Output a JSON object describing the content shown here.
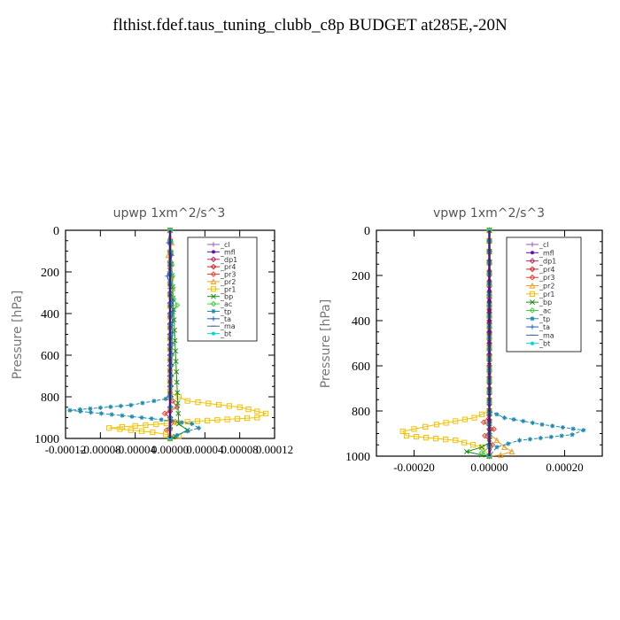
{
  "page": {
    "title": "flthist.fdef.taus_tuning_clubb_c8p  BUDGET at285E,-20N"
  },
  "chart_data": [
    {
      "type": "line",
      "title": "upwp   1xm^2/s^3",
      "ylabel": "Pressure [hPa]",
      "xlim": [
        -0.00012,
        0.00012
      ],
      "ylim": [
        1000,
        0
      ],
      "xticks": [
        -0.00012,
        -8e-05,
        -4e-05,
        0.0,
        4e-05,
        8e-05,
        0.00012
      ],
      "xtick_labels": [
        "-0.00012",
        "-0.00008",
        "-0.00004",
        "0.00000",
        "0.00004",
        "0.00008",
        "0.00012"
      ],
      "yticks": [
        0,
        200,
        400,
        600,
        800,
        1000
      ],
      "ytick_labels": [
        "0",
        "200",
        "400",
        "600",
        "800",
        "1000"
      ],
      "legend_position": "top-right",
      "series": [
        {
          "name": "_cl",
          "color": "#9b59b6",
          "marker": "plus",
          "x": [
            0,
            0,
            0,
            0
          ],
          "y": [
            0,
            400,
            800,
            1000
          ]
        },
        {
          "name": "_mfl",
          "color": "#6a0dad",
          "marker": "dot",
          "x": [
            0,
            0,
            0,
            0
          ],
          "y": [
            0,
            400,
            800,
            1000
          ]
        },
        {
          "name": "_dp1",
          "color": "#b03060",
          "marker": "diamond",
          "x": [
            0,
            0,
            0,
            0,
            0
          ],
          "y": [
            0,
            300,
            600,
            850,
            1000
          ]
        },
        {
          "name": "_pr4",
          "color": "#cc2222",
          "marker": "diamond",
          "x": [
            0,
            0,
            0,
            0,
            0
          ],
          "y": [
            0,
            500,
            800,
            870,
            1000
          ]
        },
        {
          "name": "_pr3",
          "color": "#e8402a",
          "marker": "diamond",
          "x": [
            0,
            0,
            3e-06,
            8e-06,
            -6e-06,
            6e-06,
            -4e-06,
            0
          ],
          "y": [
            0,
            780,
            820,
            850,
            880,
            920,
            960,
            1000
          ]
        },
        {
          "name": "_pr2",
          "color": "#f0a020",
          "marker": "triangle",
          "x": [
            0,
            2e-06,
            -2e-06,
            3e-06,
            0,
            0
          ],
          "y": [
            0,
            60,
            120,
            280,
            360,
            1000
          ]
        },
        {
          "name": "_pr1",
          "color": "#f2c100",
          "marker": "square",
          "x": [
            0,
            0,
            2e-05,
            8e-05,
            0.00011,
            0.0001,
            2e-05,
            -4e-05,
            -7e-05,
            -2e-05,
            1e-05,
            0
          ],
          "y": [
            0,
            780,
            820,
            850,
            880,
            900,
            920,
            940,
            950,
            970,
            990,
            1000
          ]
        },
        {
          "name": "_bp",
          "color": "#1a8c1a",
          "marker": "x",
          "x": [
            0,
            4e-06,
            1e-05,
            2e-05,
            6e-06,
            0
          ],
          "y": [
            0,
            380,
            930,
            960,
            990,
            1000
          ]
        },
        {
          "name": "_ac",
          "color": "#44cc44",
          "marker": "diamond",
          "x": [
            0,
            4e-06,
            8e-06,
            3e-06,
            0
          ],
          "y": [
            0,
            330,
            360,
            400,
            1000
          ]
        },
        {
          "name": "_tp",
          "color": "#1e8ab0",
          "marker": "star",
          "x": [
            0,
            0,
            -5e-06,
            -4.5e-05,
            -0.000115,
            -5.5e-05,
            -1e-05,
            2.5e-05,
            3.3e-05,
            2e-05,
            8e-06,
            0
          ],
          "y": [
            0,
            780,
            810,
            840,
            865,
            890,
            910,
            930,
            950,
            965,
            985,
            1000
          ]
        },
        {
          "name": "_ta",
          "color": "#2060c0",
          "marker": "plus",
          "x": [
            0,
            -2e-06,
            2e-06,
            -3e-06,
            3e-06,
            0
          ],
          "y": [
            0,
            60,
            120,
            220,
            340,
            1000
          ]
        },
        {
          "name": "_ma",
          "color": "#5060a0",
          "marker": "dash",
          "x": [
            0,
            0
          ],
          "y": [
            0,
            1000
          ]
        },
        {
          "name": "_bt",
          "color": "#00d8d8",
          "marker": "dot",
          "x": [
            0,
            0
          ],
          "y": [
            0,
            1000
          ]
        }
      ]
    },
    {
      "type": "line",
      "title": "vpwp   1xm^2/s^3",
      "ylabel": "Pressure [hPa]",
      "xlim": [
        -0.0003,
        0.0003
      ],
      "ylim": [
        1000,
        0
      ],
      "xticks": [
        -0.0002,
        0.0,
        0.0002
      ],
      "xtick_labels": [
        "-0.00020",
        "0.00000",
        "0.00020"
      ],
      "yticks": [
        0,
        200,
        400,
        600,
        800,
        1000
      ],
      "ytick_labels": [
        "0",
        "200",
        "400",
        "600",
        "800",
        "1000"
      ],
      "legend_position": "top-right",
      "series": [
        {
          "name": "_cl",
          "color": "#9b59b6",
          "marker": "plus",
          "x": [
            0,
            0,
            0,
            0
          ],
          "y": [
            0,
            400,
            800,
            1000
          ]
        },
        {
          "name": "_mfl",
          "color": "#6a0dad",
          "marker": "dot",
          "x": [
            0,
            0,
            0,
            0
          ],
          "y": [
            0,
            400,
            800,
            1000
          ]
        },
        {
          "name": "_dp1",
          "color": "#b03060",
          "marker": "diamond",
          "x": [
            0,
            0,
            0,
            0,
            0
          ],
          "y": [
            0,
            300,
            600,
            850,
            1000
          ]
        },
        {
          "name": "_pr4",
          "color": "#cc2222",
          "marker": "diamond",
          "x": [
            0,
            0,
            0,
            0,
            0
          ],
          "y": [
            0,
            500,
            800,
            880,
            1000
          ]
        },
        {
          "name": "_pr3",
          "color": "#e8402a",
          "marker": "diamond",
          "x": [
            0,
            0,
            -1.5e-05,
            1.2e-05,
            -1.2e-05,
            8e-06,
            0
          ],
          "y": [
            0,
            820,
            850,
            880,
            910,
            950,
            1000
          ]
        },
        {
          "name": "_pr2",
          "color": "#f0a020",
          "marker": "triangle",
          "x": [
            0,
            0,
            2e-05,
            4e-05,
            6e-05,
            3e-05,
            0
          ],
          "y": [
            0,
            900,
            930,
            960,
            980,
            995,
            1000
          ]
        },
        {
          "name": "_pr1",
          "color": "#f2c100",
          "marker": "square",
          "x": [
            0,
            0,
            -4e-05,
            -0.00014,
            -0.00023,
            -0.00022,
            -9e-05,
            -2e-05,
            0
          ],
          "y": [
            0,
            800,
            830,
            860,
            890,
            910,
            930,
            960,
            1000
          ]
        },
        {
          "name": "_bp",
          "color": "#1a8c1a",
          "marker": "x",
          "x": [
            0,
            0,
            -2e-05,
            -6e-05,
            -2e-05,
            0
          ],
          "y": [
            0,
            940,
            960,
            980,
            995,
            1000
          ]
        },
        {
          "name": "_ac",
          "color": "#44cc44",
          "marker": "diamond",
          "x": [
            0,
            0,
            -2e-05,
            0
          ],
          "y": [
            0,
            960,
            985,
            1000
          ]
        },
        {
          "name": "_tp",
          "color": "#1e8ab0",
          "marker": "star",
          "x": [
            0,
            0,
            4e-05,
            0.00014,
            0.00025,
            0.00022,
            8e-05,
            2e-05,
            0
          ],
          "y": [
            0,
            800,
            830,
            860,
            885,
            905,
            930,
            960,
            1000
          ]
        },
        {
          "name": "_ta",
          "color": "#2060c0",
          "marker": "plus",
          "x": [
            0,
            0,
            0
          ],
          "y": [
            0,
            500,
            1000
          ]
        },
        {
          "name": "_ma",
          "color": "#5060a0",
          "marker": "dash",
          "x": [
            0,
            0
          ],
          "y": [
            0,
            1000
          ]
        },
        {
          "name": "_bt",
          "color": "#00d8d8",
          "marker": "dot",
          "x": [
            0,
            0
          ],
          "y": [
            0,
            1000
          ]
        }
      ]
    }
  ]
}
